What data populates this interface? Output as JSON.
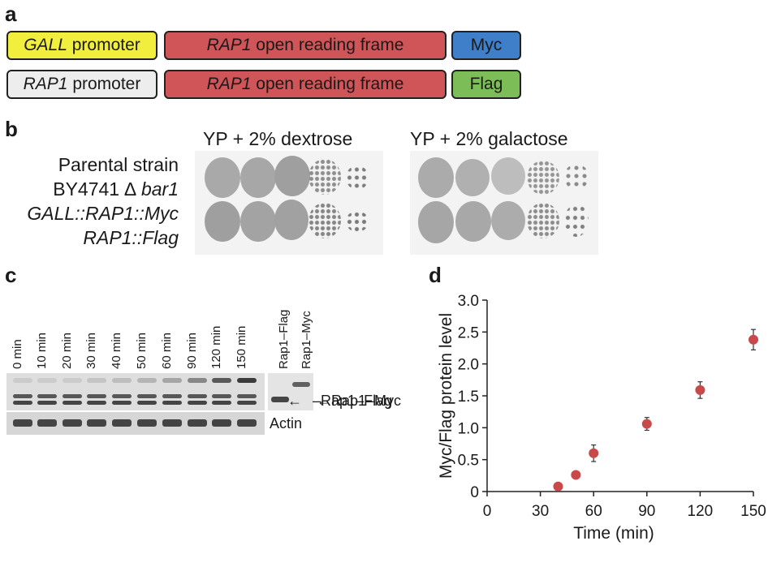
{
  "panel_a": {
    "letter": "a",
    "row1": {
      "promoter_italic": "GALL",
      "promoter_rest": " promoter",
      "orf_italic": "RAP1",
      "orf_rest": " open reading frame",
      "tag": "Myc"
    },
    "row2": {
      "promoter_italic": "RAP1",
      "promoter_rest": " promoter",
      "orf_italic": "RAP1",
      "orf_rest": " open reading frame",
      "tag": "Flag"
    },
    "colors": {
      "gall": "#f2ee3e",
      "rap1_promoter": "#ededed",
      "orf": "#cf5558",
      "myc": "#3f7fc9",
      "flag": "#7cbd58"
    }
  },
  "panel_b": {
    "letter": "b",
    "plate1_title": "YP + 2% dextrose",
    "plate2_title": "YP + 2% galactose",
    "strain_line1": "Parental strain",
    "strain_line2_prefix": "BY4741 ∆ ",
    "strain_line2_italic": "bar1",
    "strain_line3": "GALL::RAP1::Myc",
    "strain_line4": "RAP1::Flag"
  },
  "panel_c": {
    "letter": "c",
    "lanes": [
      "0 min",
      "10 min",
      "20 min",
      "30 min",
      "40 min",
      "50 min",
      "60 min",
      "90 min",
      "120 min",
      "150 min"
    ],
    "controls": [
      "Rap1–Flag",
      "Rap1–Myc"
    ],
    "myc_label": "Rap1–Myc",
    "flag_label": "Rap1–Flag",
    "actin_label": "Actin",
    "myc_band_levels": [
      0.0,
      0.0,
      0.0,
      0.05,
      0.1,
      0.15,
      0.25,
      0.45,
      0.75,
      0.95
    ]
  },
  "panel_d": {
    "letter": "d",
    "chart_data": {
      "type": "scatter",
      "xlabel": "Time (min)",
      "ylabel": "Myc/Flag protein level",
      "xlim": [
        0,
        150
      ],
      "ylim": [
        0,
        3.0
      ],
      "x_ticks": [
        "0",
        "30",
        "60",
        "90",
        "120",
        "150"
      ],
      "y_ticks": [
        "0",
        "0.5",
        "1.0",
        "1.5",
        "2.0",
        "2.5",
        "3.0"
      ],
      "marker_color": "#c9484a",
      "x": [
        40,
        50,
        60,
        90,
        120,
        150
      ],
      "y": [
        0.08,
        0.26,
        0.6,
        1.06,
        1.59,
        2.38
      ],
      "err": [
        0.0,
        0.0,
        0.13,
        0.1,
        0.13,
        0.16
      ]
    }
  }
}
